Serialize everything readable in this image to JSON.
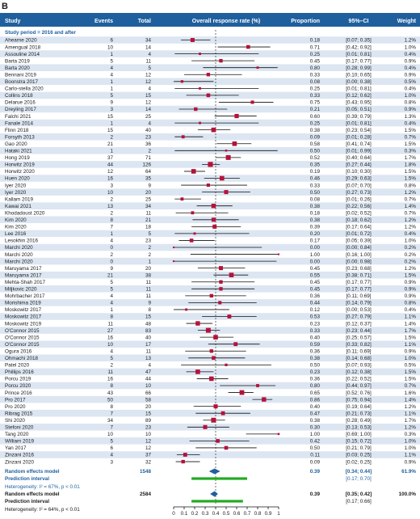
{
  "panel_label": "B",
  "header": {
    "study": "Study",
    "events": "Events",
    "total": "Total",
    "plot": "Overall response rate (%)",
    "proportion": "Proportion",
    "ci": "95%–CI",
    "weight": "Weight"
  },
  "subgroup_label": "Study period = 2016 and after",
  "random_subgroup": {
    "label": "Random effects model",
    "total": "1548",
    "proportion": "0.39",
    "ci": "[0.34; 0.44]",
    "weight": "61.9%"
  },
  "prediction_subgroup": {
    "label": "Prediction interval",
    "ci": "[0.17; 0.70]"
  },
  "heterogeneity_subgroup": "Heterogeneity: I² = 67%, p < 0.01",
  "random_overall": {
    "label": "Random effects model",
    "total": "2584",
    "proportion": "0.39",
    "ci": "[0.35; 0.42]",
    "weight": "100.0%"
  },
  "prediction_overall": {
    "label": "Prediction interval",
    "ci": "[0.17; 0.66]"
  },
  "heterogeneity_overall": "Heterogeneity: I² = 64%, p < 0.01",
  "colors": {
    "header_bg": "#1f5f9e",
    "band": "#dce6f2",
    "square": "#b5123a",
    "diamond": "#1f5f9e",
    "prediction": "#22aa22"
  },
  "chart_data": {
    "type": "forest",
    "xlim": [
      0,
      1
    ],
    "xticks": [
      "0",
      "0.1",
      "0.2",
      "0.3",
      "0.4",
      "0.5",
      "0.6",
      "0.7",
      "0.8",
      "0.9",
      "1"
    ],
    "reference_line": 0.4,
    "studies": [
      {
        "study": "Ahearne 2020",
        "events": "6",
        "total": "34",
        "p": "0.18",
        "ci": "[0.07; 0.35]",
        "w": "1.2%",
        "lo": 0.07,
        "hi": 0.35
      },
      {
        "study": "Amengual 2018",
        "events": "10",
        "total": "14",
        "p": "0.71",
        "ci": "[0.42; 0.92]",
        "w": "1.0%",
        "lo": 0.42,
        "hi": 0.92
      },
      {
        "study": "Assouline 2014",
        "events": "1",
        "total": "4",
        "p": "0.25",
        "ci": "[0.01; 0.81]",
        "w": "0.4%",
        "lo": 0.01,
        "hi": 0.81
      },
      {
        "study": "Barta 2019",
        "events": "5",
        "total": "11",
        "p": "0.45",
        "ci": "[0.17; 0.77]",
        "w": "0.9%",
        "lo": 0.17,
        "hi": 0.77
      },
      {
        "study": "Barta 2020",
        "events": "4",
        "total": "5",
        "p": "0.80",
        "ci": "[0.28; 0.99]",
        "w": "0.4%",
        "lo": 0.28,
        "hi": 0.99
      },
      {
        "study": "Bennani 2019",
        "events": "4",
        "total": "12",
        "p": "0.33",
        "ci": "[0.10; 0.65]",
        "w": "0.9%",
        "lo": 0.1,
        "hi": 0.65
      },
      {
        "study": "Boonstra 2017",
        "events": "1",
        "total": "12",
        "p": "0.08",
        "ci": "[0.00; 0.38]",
        "w": "0.5%",
        "lo": 0.0,
        "hi": 0.38
      },
      {
        "study": "Carlo-stella 2020",
        "events": "1",
        "total": "4",
        "p": "0.25",
        "ci": "[0.01; 0.81]",
        "w": "0.4%",
        "lo": 0.01,
        "hi": 0.81
      },
      {
        "study": "Collins 2018",
        "events": "5",
        "total": "15",
        "p": "0.33",
        "ci": "[0.12; 0.62]",
        "w": "1.0%",
        "lo": 0.12,
        "hi": 0.62
      },
      {
        "study": "Delarue 2016",
        "events": "9",
        "total": "12",
        "p": "0.75",
        "ci": "[0.43; 0.95]",
        "w": "0.8%",
        "lo": 0.43,
        "hi": 0.95
      },
      {
        "study": "Dreyling 2017",
        "events": "3",
        "total": "14",
        "p": "0.21",
        "ci": "[0.05; 0.51]",
        "w": "0.9%",
        "lo": 0.05,
        "hi": 0.51
      },
      {
        "study": "Falchi 2021",
        "events": "15",
        "total": "25",
        "p": "0.60",
        "ci": "[0.39; 0.79]",
        "w": "1.3%",
        "lo": 0.39,
        "hi": 0.79
      },
      {
        "study": "Fanale 2014",
        "events": "1",
        "total": "4",
        "p": "0.25",
        "ci": "[0.01; 0.81]",
        "w": "0.4%",
        "lo": 0.01,
        "hi": 0.81
      },
      {
        "study": "Flinn 2018",
        "events": "15",
        "total": "40",
        "p": "0.38",
        "ci": "[0.23; 0.54]",
        "w": "1.5%",
        "lo": 0.23,
        "hi": 0.54
      },
      {
        "study": "Forsyth 2013",
        "events": "2",
        "total": "23",
        "p": "0.09",
        "ci": "[0.01; 0.28]",
        "w": "0.7%",
        "lo": 0.01,
        "hi": 0.28
      },
      {
        "study": "Gao 2020",
        "events": "21",
        "total": "36",
        "p": "0.58",
        "ci": "[0.41; 0.74]",
        "w": "1.5%",
        "lo": 0.41,
        "hi": 0.74
      },
      {
        "study": "Hataki 2021",
        "events": "1",
        "total": "2",
        "p": "0.50",
        "ci": "[0.01; 0.99]",
        "w": "0.3%",
        "lo": 0.01,
        "hi": 0.99
      },
      {
        "study": "Hong 2019",
        "events": "37",
        "total": "71",
        "p": "0.52",
        "ci": "[0.40; 0.64]",
        "w": "1.7%",
        "lo": 0.4,
        "hi": 0.64
      },
      {
        "study": "Horwitz 2019",
        "events": "44",
        "total": "126",
        "p": "0.35",
        "ci": "[0.27; 0.44]",
        "w": "1.8%",
        "lo": 0.27,
        "hi": 0.44
      },
      {
        "study": "Horwitz 2020",
        "events": "12",
        "total": "64",
        "p": "0.19",
        "ci": "[0.10; 0.30]",
        "w": "1.5%",
        "lo": 0.1,
        "hi": 0.3
      },
      {
        "study": "Huen 2020",
        "events": "16",
        "total": "35",
        "p": "0.46",
        "ci": "[0.29; 0.63]",
        "w": "1.5%",
        "lo": 0.29,
        "hi": 0.63
      },
      {
        "study": "Iyer 2020",
        "events": "3",
        "total": "9",
        "p": "0.33",
        "ci": "[0.07; 0.70]",
        "w": "0.8%",
        "lo": 0.07,
        "hi": 0.7
      },
      {
        "study": "Iyer 2020",
        "events": "10",
        "total": "20",
        "p": "0.50",
        "ci": "[0.27; 0.73]",
        "w": "1.2%",
        "lo": 0.27,
        "hi": 0.73
      },
      {
        "study": "Kallam 2019",
        "events": "2",
        "total": "25",
        "p": "0.08",
        "ci": "[0.01; 0.26]",
        "w": "0.7%",
        "lo": 0.01,
        "hi": 0.26
      },
      {
        "study": "Kawai 2021",
        "events": "13",
        "total": "34",
        "p": "0.38",
        "ci": "[0.22; 0.56]",
        "w": "1.4%",
        "lo": 0.22,
        "hi": 0.56
      },
      {
        "study": "Khodadoust 2020",
        "events": "2",
        "total": "11",
        "p": "0.18",
        "ci": "[0.02; 0.52]",
        "w": "0.7%",
        "lo": 0.02,
        "hi": 0.52
      },
      {
        "study": "Kim 2020",
        "events": "8",
        "total": "21",
        "p": "0.38",
        "ci": "[0.18; 0.62]",
        "w": "1.2%",
        "lo": 0.18,
        "hi": 0.62
      },
      {
        "study": "Kim 2020",
        "events": "7",
        "total": "18",
        "p": "0.39",
        "ci": "[0.17; 0.64]",
        "w": "1.2%",
        "lo": 0.17,
        "hi": 0.64
      },
      {
        "study": "Lee 2016",
        "events": "1",
        "total": "5",
        "p": "0.20",
        "ci": "[0.01; 0.72]",
        "w": "0.4%",
        "lo": 0.01,
        "hi": 0.72
      },
      {
        "study": "Lesokhin 2016",
        "events": "4",
        "total": "23",
        "p": "0.17",
        "ci": "[0.05; 0.39]",
        "w": "1.0%",
        "lo": 0.05,
        "hi": 0.39
      },
      {
        "study": "Marchi 2020",
        "events": "0",
        "total": "2",
        "p": "0.00",
        "ci": "[0.00; 0.84]",
        "w": "0.2%",
        "lo": 0.0,
        "hi": 0.84
      },
      {
        "study": "Marchi 2020",
        "events": "2",
        "total": "2",
        "p": "1.00",
        "ci": "[0.16; 1.00]",
        "w": "0.2%",
        "lo": 0.16,
        "hi": 1.0
      },
      {
        "study": "Marchi 2020",
        "events": "0",
        "total": "1",
        "p": "0.00",
        "ci": "[0.00; 0.98]",
        "w": "0.2%",
        "lo": 0.0,
        "hi": 0.98
      },
      {
        "study": "Maruyama 2017",
        "events": "9",
        "total": "20",
        "p": "0.45",
        "ci": "[0.23; 0.68]",
        "w": "1.2%",
        "lo": 0.23,
        "hi": 0.68
      },
      {
        "study": "Maruyama 2017",
        "events": "21",
        "total": "38",
        "p": "0.55",
        "ci": "[0.38; 0.71]",
        "w": "1.5%",
        "lo": 0.38,
        "hi": 0.71
      },
      {
        "study": "Mehta-Shah 2017",
        "events": "5",
        "total": "11",
        "p": "0.45",
        "ci": "[0.17; 0.77]",
        "w": "0.9%",
        "lo": 0.17,
        "hi": 0.77
      },
      {
        "study": "Miljkovic 2020",
        "events": "5",
        "total": "11",
        "p": "0.45",
        "ci": "[0.17; 0.77]",
        "w": "0.9%",
        "lo": 0.17,
        "hi": 0.77
      },
      {
        "study": "Mohrbacher 2017",
        "events": "4",
        "total": "11",
        "p": "0.36",
        "ci": "[0.11; 0.69]",
        "w": "0.9%",
        "lo": 0.11,
        "hi": 0.69
      },
      {
        "study": "Morishima 2019",
        "events": "4",
        "total": "9",
        "p": "0.44",
        "ci": "[0.14; 0.79]",
        "w": "0.8%",
        "lo": 0.14,
        "hi": 0.79
      },
      {
        "study": "Moskowitz 2017",
        "events": "1",
        "total": "8",
        "p": "0.12",
        "ci": "[0.00; 0.53]",
        "w": "0.4%",
        "lo": 0.0,
        "hi": 0.53
      },
      {
        "study": "Moskowitz 2017",
        "events": "8",
        "total": "15",
        "p": "0.53",
        "ci": "[0.27; 0.79]",
        "w": "1.1%",
        "lo": 0.27,
        "hi": 0.79
      },
      {
        "study": "Moskowitz 2019",
        "events": "11",
        "total": "48",
        "p": "0.23",
        "ci": "[0.12; 0.37]",
        "w": "1.4%",
        "lo": 0.12,
        "hi": 0.37
      },
      {
        "study": "O'Connor 2015",
        "events": "27",
        "total": "83",
        "p": "0.33",
        "ci": "[0.23; 0.44]",
        "w": "1.7%",
        "lo": 0.23,
        "hi": 0.44
      },
      {
        "study": "O'Connor 2015",
        "events": "16",
        "total": "40",
        "p": "0.40",
        "ci": "[0.25; 0.57]",
        "w": "1.5%",
        "lo": 0.25,
        "hi": 0.57
      },
      {
        "study": "O'Connor 2015",
        "events": "10",
        "total": "17",
        "p": "0.59",
        "ci": "[0.33; 0.82]",
        "w": "1.1%",
        "lo": 0.33,
        "hi": 0.82
      },
      {
        "study": "Ogura 2016",
        "events": "4",
        "total": "11",
        "p": "0.36",
        "ci": "[0.11; 0.69]",
        "w": "0.9%",
        "lo": 0.11,
        "hi": 0.69
      },
      {
        "study": "Ohmachi 2018",
        "events": "5",
        "total": "13",
        "p": "0.38",
        "ci": "[0.14; 0.68]",
        "w": "1.0%",
        "lo": 0.14,
        "hi": 0.68
      },
      {
        "study": "Patel 2020",
        "events": "2",
        "total": "4",
        "p": "0.50",
        "ci": "[0.07; 0.93]",
        "w": "0.5%",
        "lo": 0.07,
        "hi": 0.93
      },
      {
        "study": "Phillips 2016",
        "events": "11",
        "total": "47",
        "p": "0.23",
        "ci": "[0.12; 0.38]",
        "w": "1.5%",
        "lo": 0.12,
        "hi": 0.38
      },
      {
        "study": "Porcu 2019",
        "events": "16",
        "total": "44",
        "p": "0.36",
        "ci": "[0.22; 0.52]",
        "w": "1.5%",
        "lo": 0.22,
        "hi": 0.52
      },
      {
        "study": "Porcu 2020",
        "events": "8",
        "total": "10",
        "p": "0.80",
        "ci": "[0.44; 0.97]",
        "w": "0.7%",
        "lo": 0.44,
        "hi": 0.97
      },
      {
        "study": "Prince 2016",
        "events": "43",
        "total": "66",
        "p": "0.65",
        "ci": "[0.52; 0.76]",
        "w": "1.6%",
        "lo": 0.52,
        "hi": 0.76
      },
      {
        "study": "Pro 2017",
        "events": "50",
        "total": "58",
        "p": "0.86",
        "ci": "[0.75; 0.94]",
        "w": "1.4%",
        "lo": 0.75,
        "hi": 0.94
      },
      {
        "study": "Pro 2020",
        "events": "8",
        "total": "20",
        "p": "0.40",
        "ci": "[0.19; 0.64]",
        "w": "1.2%",
        "lo": 0.19,
        "hi": 0.64
      },
      {
        "study": "Ribrag 2015",
        "events": "7",
        "total": "15",
        "p": "0.47",
        "ci": "[0.21; 0.73]",
        "w": "1.1%",
        "lo": 0.21,
        "hi": 0.73
      },
      {
        "study": "Shi 2020",
        "events": "34",
        "total": "89",
        "p": "0.38",
        "ci": "[0.28; 0.49]",
        "w": "1.7%",
        "lo": 0.28,
        "hi": 0.49
      },
      {
        "study": "Stefoni 2020",
        "events": "7",
        "total": "23",
        "p": "0.30",
        "ci": "[0.13; 0.53]",
        "w": "1.2%",
        "lo": 0.13,
        "hi": 0.53
      },
      {
        "study": "Tang 2020",
        "events": "10",
        "total": "10",
        "p": "1.00",
        "ci": "[0.69; 1.00]",
        "w": "0.3%",
        "lo": 0.69,
        "hi": 1.0
      },
      {
        "study": "William 2019",
        "events": "5",
        "total": "12",
        "p": "0.42",
        "ci": "[0.15; 0.72]",
        "w": "1.0%",
        "lo": 0.15,
        "hi": 0.72
      },
      {
        "study": "Yan 2017",
        "events": "6",
        "total": "12",
        "p": "0.50",
        "ci": "[0.21; 0.79]",
        "w": "1.0%",
        "lo": 0.21,
        "hi": 0.79
      },
      {
        "study": "Zinzani 2016",
        "events": "4",
        "total": "37",
        "p": "0.11",
        "ci": "[0.03; 0.25]",
        "w": "1.1%",
        "lo": 0.03,
        "hi": 0.25
      },
      {
        "study": "Zinzani 2020",
        "events": "3",
        "total": "32",
        "p": "0.09",
        "ci": "[0.02; 0.25]",
        "w": "0.9%",
        "lo": 0.02,
        "hi": 0.25
      }
    ],
    "subgroup_summary": {
      "est": 0.39,
      "lo": 0.34,
      "hi": 0.44,
      "pi": [
        0.17,
        0.7
      ]
    },
    "overall_summary": {
      "est": 0.39,
      "lo": 0.35,
      "hi": 0.42,
      "pi": [
        0.17,
        0.66
      ]
    }
  }
}
